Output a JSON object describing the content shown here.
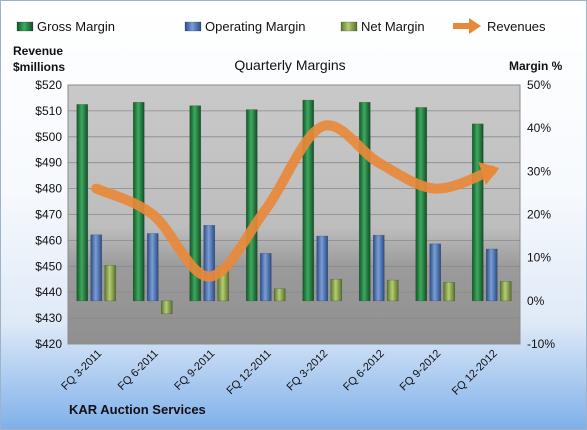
{
  "chart_data": {
    "type": "bar",
    "title": "Quarterly Margins",
    "footer": "KAR Auction Services",
    "y_left_label_line1": "Revenue",
    "y_left_label_line2": "$millions",
    "y_right_label": "Margin %",
    "categories": [
      "FQ 3-2011",
      "FQ 6-2011",
      "FQ 9-2011",
      "FQ 12-2011",
      "FQ 3-2012",
      "FQ 6-2012",
      "FQ 9-2012",
      "FQ 12-2012"
    ],
    "y_left_lim": [
      420,
      520
    ],
    "y_left_ticks": [
      420,
      430,
      440,
      450,
      460,
      470,
      480,
      490,
      500,
      510,
      520
    ],
    "y_left_tick_labels": [
      "$420",
      "$430",
      "$440",
      "$450",
      "$460",
      "$470",
      "$480",
      "$490",
      "$500",
      "$510",
      "$520"
    ],
    "y_right_lim": [
      -10,
      50
    ],
    "y_right_ticks": [
      -10,
      0,
      10,
      20,
      30,
      40,
      50
    ],
    "y_right_tick_labels": [
      "-10%",
      "0%",
      "10%",
      "20%",
      "30%",
      "40%",
      "50%"
    ],
    "series": [
      {
        "name": "Gross Margin",
        "type": "bar",
        "axis": "right",
        "color": "#1e7a3c",
        "values": [
          45.5,
          46.0,
          45.2,
          44.3,
          46.5,
          46.0,
          44.8,
          41.0
        ]
      },
      {
        "name": "Operating Margin",
        "type": "bar",
        "axis": "right",
        "color": "#4f75b6",
        "values": [
          15.3,
          15.6,
          17.5,
          11.0,
          15.0,
          15.2,
          13.2,
          12.0
        ]
      },
      {
        "name": "Net Margin",
        "type": "bar",
        "axis": "right",
        "color": "#8aa646",
        "values": [
          8.2,
          -3.0,
          7.2,
          2.8,
          5.0,
          4.8,
          4.3,
          4.5
        ]
      },
      {
        "name": "Revenues",
        "type": "line",
        "axis": "left",
        "color": "#e8893a",
        "values": [
          480,
          470,
          446,
          472,
          504,
          490,
          480,
          487
        ]
      }
    ],
    "legend_position": "top",
    "plot_area_color": "#bdbdbd"
  }
}
